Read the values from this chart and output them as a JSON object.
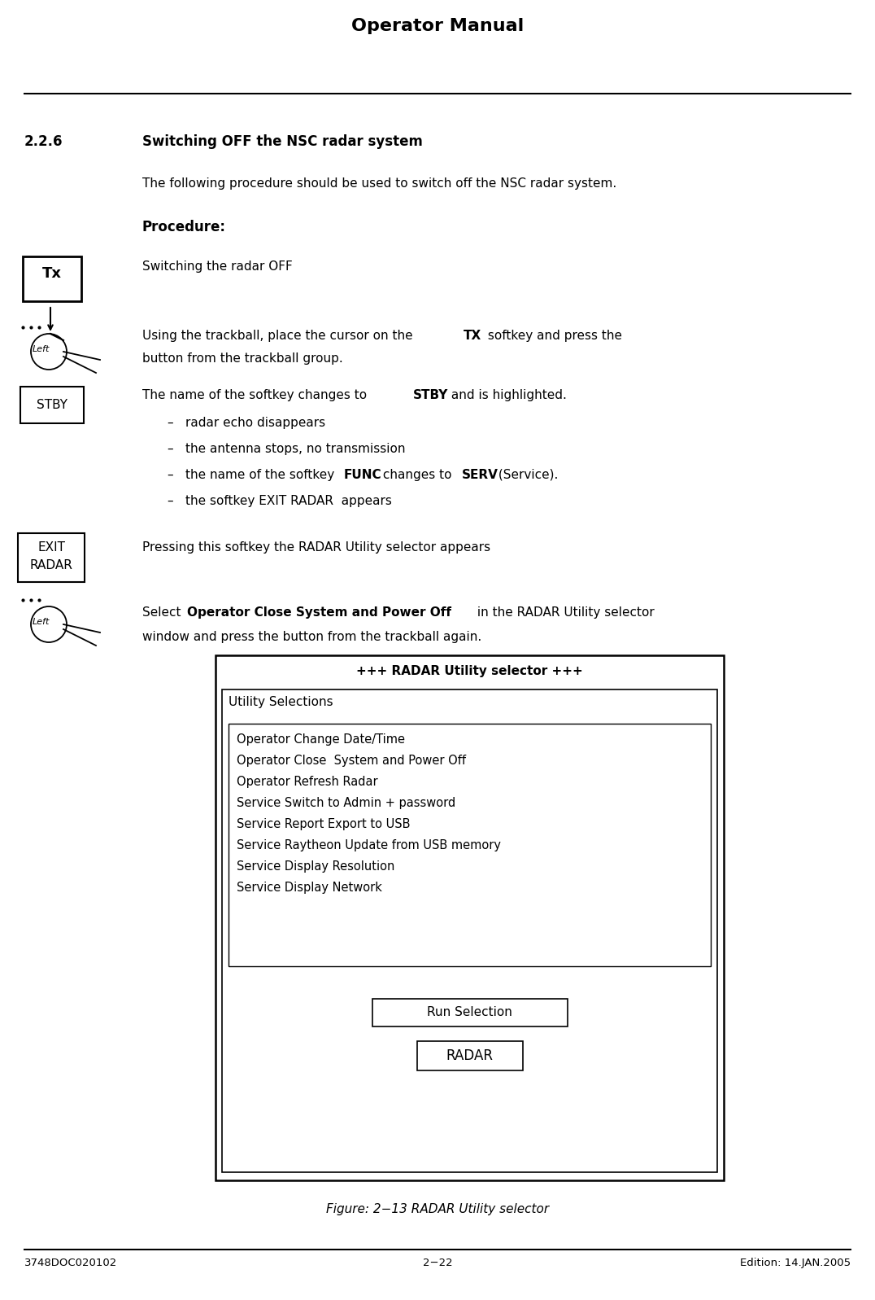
{
  "title": "Operator Manual",
  "section": "2.2.6",
  "section_title": "Switching OFF the NSC radar system",
  "intro_text": "The following procedure should be used to switch off the NSC radar system.",
  "procedure_label": "Procedure:",
  "step1_label": "Switching the radar OFF",
  "step2_text_pre": "Using the trackball, place the cursor on the ",
  "step2_text_bold": "TX",
  "step2_text_post": " softkey and press the",
  "step2_line2": "button from the trackball group.",
  "step3_pre": "The name of the softkey changes to ",
  "step3_bold": "STBY",
  "step3_post": " and is highlighted.",
  "bullet1": "radar echo disappears",
  "bullet2": "the antenna stops, no transmission",
  "bullet3_pre": "the name of the softkey ",
  "bullet3_bold1": "FUNC",
  "bullet3_mid": " changes to ",
  "bullet3_bold2": "SERV",
  "bullet3_post": " (Service).",
  "bullet4": "the softkey EXIT RADAR  appears",
  "step4_text": "Pressing this softkey the RADAR Utility selector appears",
  "step5_pre": "Select ",
  "step5_bold": "Operator Close System and Power Off",
  "step5_post": " in the RADAR Utility selector",
  "step5_line2": "window and press the button from the trackball again.",
  "dialog_title": "+++ RADAR Utility selector +++",
  "dialog_section": "Utility Selections",
  "dialog_run": "Run Selection",
  "dialog_radar": "RADAR",
  "dialog_items": [
    "Operator Change Date/Time",
    "Operator Close  System and Power Off",
    "Operator Refresh Radar",
    "Service Switch to Admin + password",
    "Service Report Export to USB",
    "Service Raytheon Update from USB memory",
    "Service Display Resolution",
    "Service Display Network"
  ],
  "figure_caption": "Figure: 2−13 RADAR Utility selector",
  "footer_left": "3748DOC020102",
  "footer_center": "2−22",
  "footer_right": "Edition: 14.JAN.2005",
  "bg_color": "#ffffff",
  "text_color": "#000000"
}
